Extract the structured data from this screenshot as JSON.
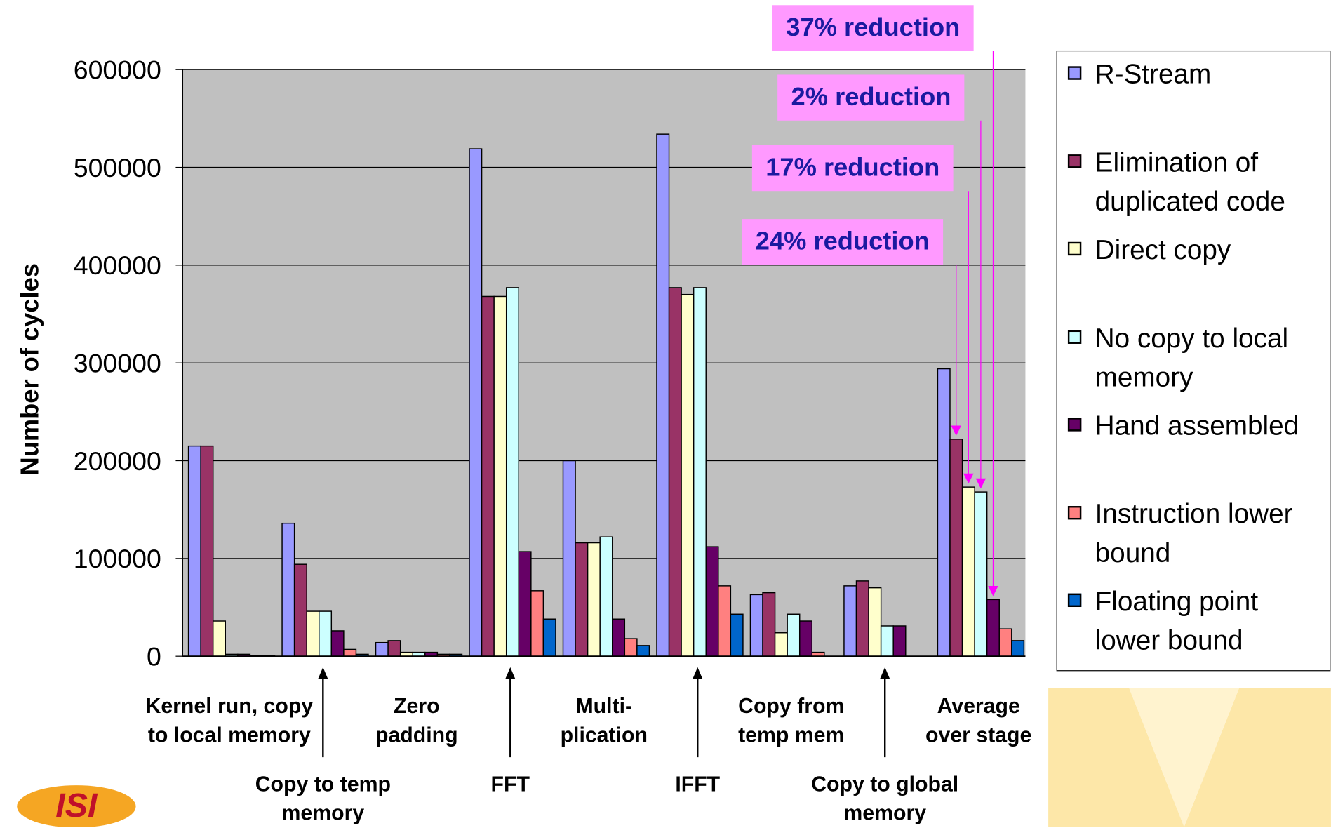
{
  "chart_data": {
    "type": "bar",
    "y_axis_label": "Number of cycles",
    "categories": [
      "Kernel run, copy\nto local memory",
      "Copy to temp\nmemory",
      "Zero\npadding",
      "FFT",
      "Multi-\nplication",
      "IFFT",
      "Copy from\ntemp mem",
      "Copy to global\nmemory",
      "Average\nover stage"
    ],
    "series": [
      {
        "name": "R-Stream",
        "color": "#9999ff",
        "values": [
          215000,
          136000,
          14000,
          519000,
          200000,
          534000,
          63000,
          72000,
          294000
        ]
      },
      {
        "name": "Elimination of duplicated code",
        "color": "#993366",
        "values": [
          215000,
          94000,
          16000,
          368000,
          116000,
          377000,
          65000,
          77000,
          222000
        ]
      },
      {
        "name": "Direct copy",
        "color": "#ffffcc",
        "values": [
          36000,
          46000,
          4000,
          368000,
          116000,
          370000,
          24000,
          70000,
          173000
        ]
      },
      {
        "name": "No copy to local memory",
        "color": "#ccffff",
        "values": [
          2000,
          46000,
          4000,
          377000,
          122000,
          377000,
          43000,
          31000,
          168000
        ]
      },
      {
        "name": "Hand assembled",
        "color": "#660066",
        "values": [
          2000,
          26000,
          4000,
          107000,
          38000,
          112000,
          36000,
          31000,
          58000
        ]
      },
      {
        "name": "Instruction lower bound",
        "color": "#ff8080",
        "values": [
          1000,
          7000,
          2000,
          67000,
          18000,
          72000,
          4000,
          0,
          28000
        ]
      },
      {
        "name": "Floating point lower bound",
        "color": "#0066cc",
        "values": [
          1000,
          2000,
          2000,
          38000,
          11000,
          43000,
          0,
          0,
          16000
        ]
      }
    ],
    "ylim": [
      0,
      600000
    ],
    "yticks": [
      0,
      100000,
      200000,
      300000,
      400000,
      500000,
      600000
    ],
    "grid": true,
    "plot_background": "#c0c0c0",
    "annotations": [
      "24% reduction",
      "17% reduction",
      "2% reduction",
      "37% reduction"
    ],
    "logo": "ISI"
  }
}
